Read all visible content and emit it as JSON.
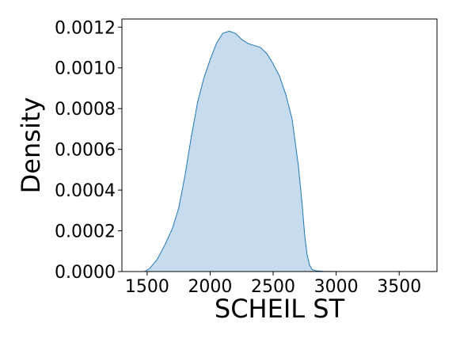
{
  "chart_data": {
    "type": "area",
    "title": "",
    "xlabel": "SCHEIL ST",
    "ylabel": "Density",
    "xlim": [
      1300,
      3800
    ],
    "ylim": [
      0,
      0.00124
    ],
    "x_ticks": [
      1500,
      2000,
      2500,
      3000,
      3500
    ],
    "x_tick_labels": [
      "1500",
      "2000",
      "2500",
      "3000",
      "3500"
    ],
    "y_ticks": [
      0,
      0.0002,
      0.0004,
      0.0006,
      0.0008,
      0.001,
      0.0012
    ],
    "y_tick_labels": [
      "0.0000",
      "0.0002",
      "0.0004",
      "0.0006",
      "0.0008",
      "0.0010",
      "0.0012"
    ],
    "grid": false,
    "legend": "none",
    "series": [
      {
        "x": [
          1480,
          1520,
          1580,
          1640,
          1700,
          1750,
          1800,
          1850,
          1900,
          1950,
          2000,
          2050,
          2100,
          2150,
          2200,
          2250,
          2300,
          2350,
          2400,
          2450,
          2500,
          2550,
          2600,
          2650,
          2700,
          2730,
          2750,
          2770,
          2790,
          2810,
          2840,
          2900,
          3000,
          3200,
          3400,
          3650
        ],
        "y": [
          0.0,
          1.5e-05,
          6e-05,
          0.00013,
          0.00021,
          0.00031,
          0.00047,
          0.00066,
          0.00083,
          0.00095,
          0.00104,
          0.00112,
          0.00117,
          0.00118,
          0.00117,
          0.00114,
          0.00112,
          0.00111,
          0.0011,
          0.00107,
          0.00102,
          0.00096,
          0.00087,
          0.00075,
          0.00052,
          0.00033,
          0.00018,
          8e-05,
          3e-05,
          1e-05,
          4e-06,
          1e-06,
          0.0,
          0.0,
          0.0,
          0.0
        ]
      }
    ],
    "colors": {
      "fill": "#c6dbed",
      "line": "#1f77b4",
      "axis": "#000000"
    }
  }
}
